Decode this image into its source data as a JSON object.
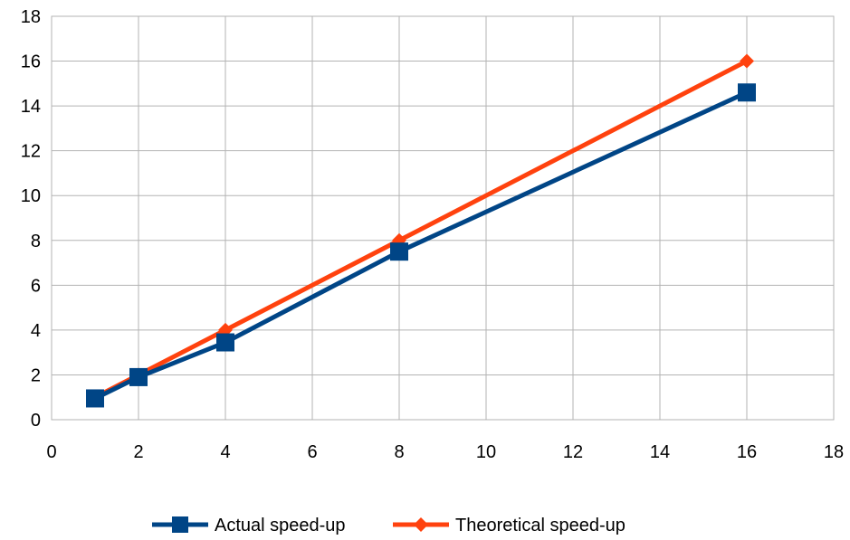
{
  "chart_data": {
    "type": "scatter",
    "title": "",
    "xlabel": "",
    "ylabel": "",
    "xlim": [
      0,
      18
    ],
    "ylim": [
      0,
      18
    ],
    "xticks": [
      0,
      2,
      4,
      6,
      8,
      10,
      12,
      14,
      16,
      18
    ],
    "yticks": [
      0,
      2,
      4,
      6,
      8,
      10,
      12,
      14,
      16,
      18
    ],
    "grid": true,
    "legend_position": "bottom",
    "series": [
      {
        "name": "Actual speed-up",
        "color": "#004586",
        "marker": "square",
        "x": [
          1,
          2,
          4,
          8,
          16
        ],
        "y": [
          0.95,
          1.9,
          3.45,
          7.5,
          14.6
        ]
      },
      {
        "name": "Theoretical speed-up",
        "color": "#ff420e",
        "marker": "diamond",
        "x": [
          1,
          2,
          4,
          8,
          16
        ],
        "y": [
          1,
          2,
          4,
          8,
          16
        ]
      }
    ]
  }
}
